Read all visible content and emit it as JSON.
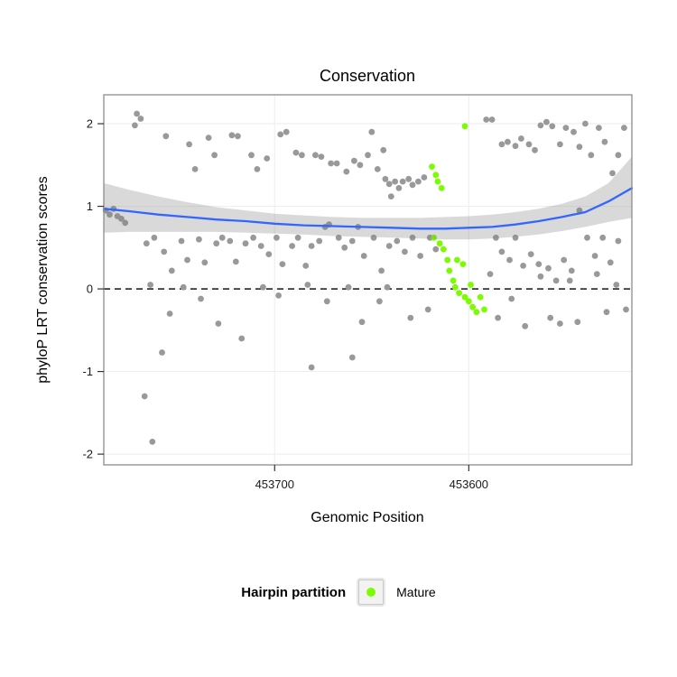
{
  "chart_data": {
    "type": "scatter",
    "title": "Conservation",
    "xlabel": "Genomic Position",
    "ylabel": "phyloP LRT conservation scores",
    "x_range": [
      453788,
      453516
    ],
    "x_reversed": true,
    "y_range": [
      -2.13,
      2.35
    ],
    "x_ticks": [
      {
        "value": 453700,
        "label": "453700"
      },
      {
        "value": 453600,
        "label": "453600"
      }
    ],
    "y_ticks": [
      {
        "value": 2,
        "label": "2"
      },
      {
        "value": 1,
        "label": "1"
      },
      {
        "value": 0,
        "label": "0"
      },
      {
        "value": -1,
        "label": "-1"
      },
      {
        "value": -2,
        "label": "-2"
      }
    ],
    "zero_line": 0,
    "colors": {
      "hairpin": "#999999",
      "mature": "#7CFC00",
      "smooth": "#3366FF",
      "ribbon": "rgba(130,130,130,0.30)",
      "grid": "#efefef",
      "panel_border": "#8c8c8c",
      "zero_line": "#000000"
    },
    "series": [
      {
        "name": "Hairpin",
        "color_key": "hairpin",
        "points": [
          [
            453771,
            2.12
          ],
          [
            453769,
            2.06
          ],
          [
            453772,
            1.98
          ],
          [
            453756,
            1.85
          ],
          [
            453744,
            1.75
          ],
          [
            453741,
            1.45
          ],
          [
            453734,
            1.83
          ],
          [
            453731,
            1.62
          ],
          [
            453722,
            1.86
          ],
          [
            453719,
            1.85
          ],
          [
            453712,
            1.62
          ],
          [
            453709,
            1.45
          ],
          [
            453704,
            1.58
          ],
          [
            453697,
            1.87
          ],
          [
            453694,
            1.9
          ],
          [
            453689,
            1.65
          ],
          [
            453686,
            1.62
          ],
          [
            453679,
            1.62
          ],
          [
            453676,
            1.6
          ],
          [
            453671,
            1.52
          ],
          [
            453668,
            1.52
          ],
          [
            453663,
            1.42
          ],
          [
            453659,
            1.55
          ],
          [
            453656,
            1.5
          ],
          [
            453652,
            1.62
          ],
          [
            453650,
            1.9
          ],
          [
            453647,
            1.45
          ],
          [
            453644,
            1.68
          ],
          [
            453640,
            1.12
          ],
          [
            453643,
            1.33
          ],
          [
            453641,
            1.27
          ],
          [
            453638,
            1.3
          ],
          [
            453636,
            1.22
          ],
          [
            453634,
            1.3
          ],
          [
            453631,
            1.33
          ],
          [
            453629,
            1.26
          ],
          [
            453626,
            1.3
          ],
          [
            453623,
            1.35
          ],
          [
            453591,
            2.05
          ],
          [
            453588,
            2.05
          ],
          [
            453583,
            1.75
          ],
          [
            453580,
            1.78
          ],
          [
            453576,
            1.73
          ],
          [
            453573,
            1.82
          ],
          [
            453569,
            1.75
          ],
          [
            453566,
            1.68
          ],
          [
            453563,
            1.98
          ],
          [
            453560,
            2.02
          ],
          [
            453557,
            1.97
          ],
          [
            453553,
            1.75
          ],
          [
            453550,
            1.95
          ],
          [
            453546,
            1.9
          ],
          [
            453543,
            1.72
          ],
          [
            453540,
            2.0
          ],
          [
            453537,
            1.62
          ],
          [
            453533,
            1.95
          ],
          [
            453530,
            1.78
          ],
          [
            453526,
            1.4
          ],
          [
            453523,
            1.62
          ],
          [
            453520,
            1.95
          ],
          [
            453787,
            0.95
          ],
          [
            453785,
            0.9
          ],
          [
            453783,
            0.97
          ],
          [
            453781,
            0.88
          ],
          [
            453779,
            0.85
          ],
          [
            453777,
            0.8
          ],
          [
            453766,
            0.55
          ],
          [
            453762,
            0.62
          ],
          [
            453757,
            0.45
          ],
          [
            453753,
            0.22
          ],
          [
            453748,
            0.58
          ],
          [
            453745,
            0.35
          ],
          [
            453739,
            0.6
          ],
          [
            453736,
            0.32
          ],
          [
            453730,
            0.55
          ],
          [
            453727,
            0.62
          ],
          [
            453723,
            0.58
          ],
          [
            453720,
            0.33
          ],
          [
            453715,
            0.55
          ],
          [
            453711,
            0.62
          ],
          [
            453707,
            0.52
          ],
          [
            453703,
            0.42
          ],
          [
            453699,
            0.62
          ],
          [
            453696,
            0.3
          ],
          [
            453691,
            0.52
          ],
          [
            453688,
            0.62
          ],
          [
            453684,
            0.28
          ],
          [
            453681,
            0.52
          ],
          [
            453677,
            0.58
          ],
          [
            453674,
            0.75
          ],
          [
            453672,
            0.78
          ],
          [
            453667,
            0.62
          ],
          [
            453664,
            0.5
          ],
          [
            453660,
            0.58
          ],
          [
            453657,
            0.75
          ],
          [
            453654,
            0.4
          ],
          [
            453649,
            0.62
          ],
          [
            453645,
            0.22
          ],
          [
            453641,
            0.52
          ],
          [
            453637,
            0.58
          ],
          [
            453633,
            0.45
          ],
          [
            453629,
            0.62
          ],
          [
            453625,
            0.4
          ],
          [
            453620,
            0.62
          ],
          [
            453617,
            0.48
          ],
          [
            453586,
            0.62
          ],
          [
            453583,
            0.45
          ],
          [
            453579,
            0.35
          ],
          [
            453576,
            0.62
          ],
          [
            453572,
            0.28
          ],
          [
            453568,
            0.42
          ],
          [
            453564,
            0.3
          ],
          [
            453559,
            0.25
          ],
          [
            453555,
            0.1
          ],
          [
            453551,
            0.35
          ],
          [
            453547,
            0.22
          ],
          [
            453543,
            0.95
          ],
          [
            453539,
            0.62
          ],
          [
            453535,
            0.4
          ],
          [
            453531,
            0.62
          ],
          [
            453527,
            0.32
          ],
          [
            453523,
            0.58
          ],
          [
            453764,
            0.05
          ],
          [
            453754,
            -0.3
          ],
          [
            453747,
            0.02
          ],
          [
            453738,
            -0.12
          ],
          [
            453729,
            -0.42
          ],
          [
            453717,
            -0.6
          ],
          [
            453706,
            0.02
          ],
          [
            453698,
            -0.08
          ],
          [
            453683,
            0.05
          ],
          [
            453673,
            -0.15
          ],
          [
            453662,
            0.02
          ],
          [
            453655,
            -0.4
          ],
          [
            453646,
            -0.15
          ],
          [
            453642,
            0.02
          ],
          [
            453630,
            -0.35
          ],
          [
            453621,
            -0.25
          ],
          [
            453589,
            0.18
          ],
          [
            453585,
            -0.35
          ],
          [
            453578,
            -0.12
          ],
          [
            453571,
            -0.45
          ],
          [
            453563,
            0.15
          ],
          [
            453558,
            -0.35
          ],
          [
            453553,
            -0.42
          ],
          [
            453548,
            0.1
          ],
          [
            453544,
            -0.4
          ],
          [
            453534,
            0.18
          ],
          [
            453529,
            -0.28
          ],
          [
            453524,
            0.05
          ],
          [
            453519,
            -0.25
          ],
          [
            453767,
            -1.3
          ],
          [
            453763,
            -1.85
          ],
          [
            453758,
            -0.77
          ],
          [
            453681,
            -0.95
          ],
          [
            453660,
            -0.83
          ]
        ]
      },
      {
        "name": "Mature",
        "color_key": "mature",
        "points": [
          [
            453619,
            1.48
          ],
          [
            453617,
            1.38
          ],
          [
            453616,
            1.3
          ],
          [
            453614,
            1.22
          ],
          [
            453602,
            1.97
          ],
          [
            453618,
            0.62
          ],
          [
            453615,
            0.55
          ],
          [
            453613,
            0.48
          ],
          [
            453611,
            0.35
          ],
          [
            453610,
            0.22
          ],
          [
            453608,
            0.1
          ],
          [
            453607,
            0.02
          ],
          [
            453605,
            -0.05
          ],
          [
            453603,
            0.3
          ],
          [
            453602,
            -0.1
          ],
          [
            453600,
            -0.15
          ],
          [
            453599,
            0.05
          ],
          [
            453598,
            -0.22
          ],
          [
            453596,
            -0.28
          ],
          [
            453594,
            -0.1
          ],
          [
            453592,
            -0.25
          ],
          [
            453606,
            0.35
          ]
        ]
      }
    ],
    "smooth": {
      "x": [
        453788,
        453775,
        453760,
        453745,
        453730,
        453715,
        453700,
        453685,
        453670,
        453655,
        453640,
        453625,
        453612,
        453600,
        453588,
        453576,
        453564,
        453552,
        453540,
        453528,
        453516
      ],
      "y": [
        0.97,
        0.94,
        0.9,
        0.87,
        0.84,
        0.82,
        0.79,
        0.77,
        0.76,
        0.75,
        0.74,
        0.73,
        0.73,
        0.74,
        0.75,
        0.78,
        0.82,
        0.87,
        0.93,
        1.06,
        1.22
      ],
      "upper": [
        1.28,
        1.2,
        1.12,
        1.05,
        0.99,
        0.95,
        0.91,
        0.89,
        0.87,
        0.86,
        0.86,
        0.86,
        0.87,
        0.88,
        0.9,
        0.93,
        0.97,
        1.03,
        1.12,
        1.28,
        1.6
      ],
      "lower": [
        0.68,
        0.69,
        0.69,
        0.69,
        0.69,
        0.68,
        0.67,
        0.66,
        0.64,
        0.63,
        0.62,
        0.61,
        0.6,
        0.6,
        0.61,
        0.63,
        0.66,
        0.7,
        0.75,
        0.81,
        0.86
      ]
    },
    "legend": {
      "title": "Hairpin partition",
      "items": [
        {
          "label": "Mature",
          "color_key": "mature"
        }
      ]
    }
  }
}
